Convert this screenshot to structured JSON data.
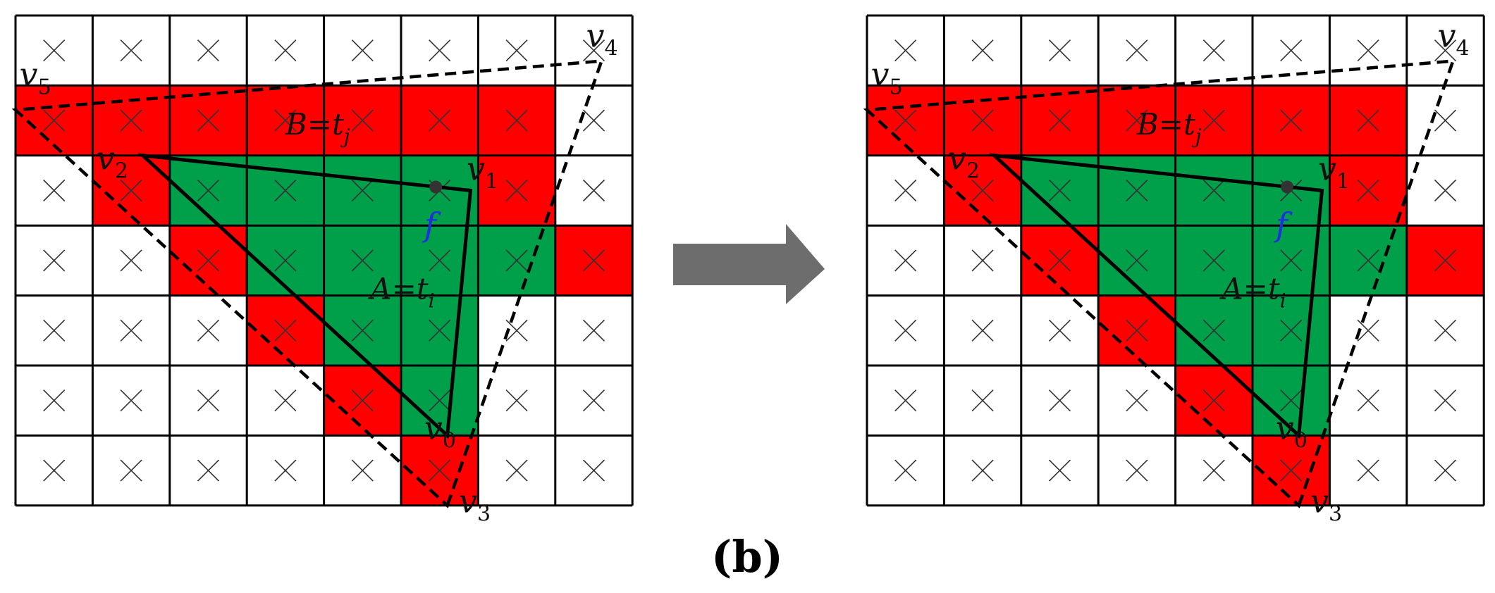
{
  "caption": "(b)",
  "colors": {
    "red": "#ff0000",
    "green": "#00a04a",
    "white": "#ffffff",
    "grid": "#000000",
    "arrow": "#6d6d6d",
    "point_f": "#1f2fe0"
  },
  "grid": {
    "rows": 7,
    "cols": 8
  },
  "panels": [
    {
      "name": "before",
      "cells": [
        "wwwwwwww",
        "rrrrrrrw",
        "wrggggrw",
        "wwrggggr",
        "wwwrggww",
        "wwwwrgww",
        "wwwwwrww"
      ],
      "labels": {
        "v0": {
          "base": "v",
          "sub": "0"
        },
        "v1": {
          "base": "v",
          "sub": "1"
        },
        "v2": {
          "base": "v",
          "sub": "2"
        },
        "v3": {
          "base": "v",
          "sub": "3"
        },
        "v4": {
          "base": "v",
          "sub": "4"
        },
        "v5": {
          "base": "v",
          "sub": "5"
        },
        "A": {
          "base": "A=t",
          "sub": "i"
        },
        "B": {
          "base": "B=t",
          "sub": "j"
        },
        "f": "f"
      }
    },
    {
      "name": "after",
      "cells": [
        "wwwwwwww",
        "rrrrrrrw",
        "wrggggrw",
        "wwrggggr",
        "wwwrggww",
        "wwwwrgww",
        "wwwwwrww"
      ],
      "labels": {
        "v0": {
          "base": "v",
          "sub": "0"
        },
        "v1": {
          "base": "v",
          "sub": "1"
        },
        "v2": {
          "base": "v",
          "sub": "2"
        },
        "v3": {
          "base": "v",
          "sub": "3"
        },
        "v4": {
          "base": "v",
          "sub": "4"
        },
        "v5": {
          "base": "v",
          "sub": "5"
        },
        "A": {
          "base": "A=t",
          "sub": "i"
        },
        "B": {
          "base": "B=t",
          "sub": "j"
        },
        "f": "f"
      }
    }
  ]
}
